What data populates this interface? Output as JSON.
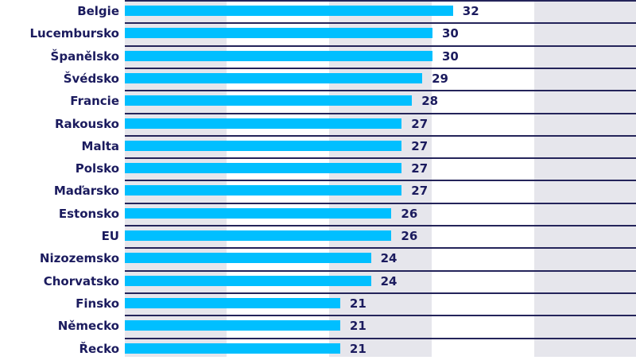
{
  "chart_data": {
    "type": "bar",
    "orientation": "horizontal",
    "title": "",
    "xlabel": "",
    "ylabel": "",
    "xlim": [
      0,
      50
    ],
    "grid": "alternating vertical bands every 10 units",
    "bar_color": "#00bfff",
    "text_color": "#1b1b5e",
    "band_color": "#e6e6ec",
    "categories": [
      "Belgie",
      "Lucembursko",
      "Španělsko",
      "Švédsko",
      "Francie",
      "Rakousko",
      "Malta",
      "Polsko",
      "Maďarsko",
      "Estonsko",
      "EU",
      "Nizozemsko",
      "Chorvatsko",
      "Finsko",
      "Německo",
      "Řecko"
    ],
    "values": [
      32,
      30,
      30,
      29,
      28,
      27,
      27,
      27,
      27,
      26,
      26,
      24,
      24,
      21,
      21,
      21
    ]
  },
  "rows": [
    {
      "label": "Belgie",
      "value": "32"
    },
    {
      "label": "Lucembursko",
      "value": "30"
    },
    {
      "label": "Španělsko",
      "value": "30"
    },
    {
      "label": "Švédsko",
      "value": "29"
    },
    {
      "label": "Francie",
      "value": "28"
    },
    {
      "label": "Rakousko",
      "value": "27"
    },
    {
      "label": "Malta",
      "value": "27"
    },
    {
      "label": "Polsko",
      "value": "27"
    },
    {
      "label": "Maďarsko",
      "value": "27"
    },
    {
      "label": "Estonsko",
      "value": "26"
    },
    {
      "label": "EU",
      "value": "26"
    },
    {
      "label": "Nizozemsko",
      "value": "24"
    },
    {
      "label": "Chorvatsko",
      "value": "24"
    },
    {
      "label": "Finsko",
      "value": "21"
    },
    {
      "label": "Německo",
      "value": "21"
    },
    {
      "label": "Řecko",
      "value": "21"
    }
  ]
}
